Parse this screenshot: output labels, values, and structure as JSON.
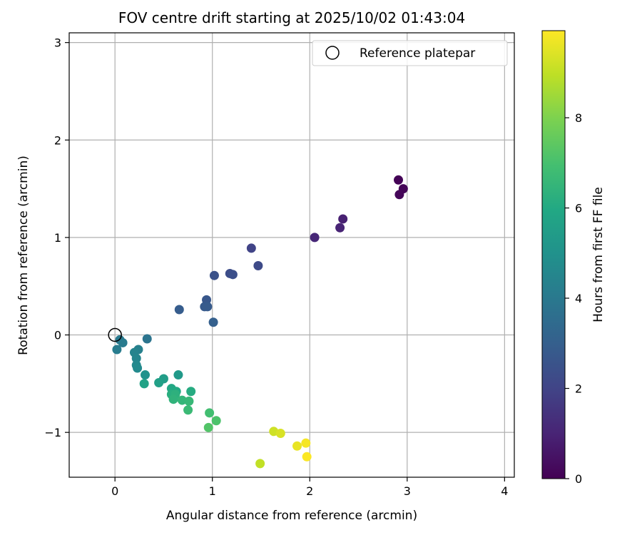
{
  "chart_data": {
    "type": "scatter",
    "title": "FOV centre drift starting at 2025/10/02 01:43:04",
    "xlabel": "Angular distance from reference (arcmin)",
    "ylabel": "Rotation from reference (arcmin)",
    "xlim": [
      -0.47,
      4.1
    ],
    "ylim": [
      -1.46,
      3.1
    ],
    "xticks": [
      0,
      1,
      2,
      3,
      4
    ],
    "xtick_labels": [
      "0",
      "1",
      "2",
      "3",
      "4"
    ],
    "yticks": [
      -1,
      0,
      1,
      2,
      3
    ],
    "ytick_labels": [
      "−1",
      "0",
      "1",
      "2",
      "3"
    ],
    "grid": true,
    "legend": {
      "position": "top-right",
      "label": "Reference platepar"
    },
    "reference_point": {
      "x": 0,
      "y": 0
    },
    "colorbar": {
      "label": "Hours from first FF file",
      "min": 0,
      "max": 9.93,
      "ticks": [
        0,
        2,
        4,
        6,
        8
      ],
      "tick_labels": [
        "0",
        "2",
        "4",
        "6",
        "8"
      ],
      "colormap": "viridis"
    },
    "points": [
      {
        "x": 2.91,
        "y": 1.59,
        "t": 0.05
      },
      {
        "x": 2.96,
        "y": 1.5,
        "t": 0.1
      },
      {
        "x": 2.92,
        "y": 1.44,
        "t": 0.15
      },
      {
        "x": 2.34,
        "y": 1.19,
        "t": 0.9
      },
      {
        "x": 2.31,
        "y": 1.1,
        "t": 1.0
      },
      {
        "x": 2.05,
        "y": 1.0,
        "t": 1.1
      },
      {
        "x": 1.4,
        "y": 0.89,
        "t": 2.0
      },
      {
        "x": 1.47,
        "y": 0.71,
        "t": 2.2
      },
      {
        "x": 1.18,
        "y": 0.63,
        "t": 2.3
      },
      {
        "x": 1.21,
        "y": 0.62,
        "t": 2.4
      },
      {
        "x": 1.02,
        "y": 0.61,
        "t": 2.5
      },
      {
        "x": 0.94,
        "y": 0.36,
        "t": 2.7
      },
      {
        "x": 0.92,
        "y": 0.29,
        "t": 2.8
      },
      {
        "x": 0.95,
        "y": 0.29,
        "t": 2.85
      },
      {
        "x": 0.66,
        "y": 0.26,
        "t": 2.9
      },
      {
        "x": 1.01,
        "y": 0.13,
        "t": 3.0
      },
      {
        "x": 0.33,
        "y": -0.04,
        "t": 3.8
      },
      {
        "x": 0.05,
        "y": -0.05,
        "t": 4.0
      },
      {
        "x": 0.08,
        "y": -0.08,
        "t": 4.1
      },
      {
        "x": 0.02,
        "y": -0.15,
        "t": 4.15
      },
      {
        "x": 0.24,
        "y": -0.15,
        "t": 4.3
      },
      {
        "x": 0.2,
        "y": -0.18,
        "t": 4.4
      },
      {
        "x": 0.22,
        "y": -0.24,
        "t": 4.5
      },
      {
        "x": 0.22,
        "y": -0.31,
        "t": 4.6
      },
      {
        "x": 0.23,
        "y": -0.34,
        "t": 4.7
      },
      {
        "x": 0.31,
        "y": -0.41,
        "t": 5.0
      },
      {
        "x": 0.65,
        "y": -0.41,
        "t": 5.3
      },
      {
        "x": 0.5,
        "y": -0.45,
        "t": 5.5
      },
      {
        "x": 0.45,
        "y": -0.49,
        "t": 5.6
      },
      {
        "x": 0.3,
        "y": -0.5,
        "t": 5.7
      },
      {
        "x": 0.58,
        "y": -0.55,
        "t": 5.9
      },
      {
        "x": 0.63,
        "y": -0.58,
        "t": 6.0
      },
      {
        "x": 0.78,
        "y": -0.58,
        "t": 6.1
      },
      {
        "x": 0.58,
        "y": -0.61,
        "t": 6.2
      },
      {
        "x": 0.62,
        "y": -0.61,
        "t": 6.3
      },
      {
        "x": 0.6,
        "y": -0.66,
        "t": 6.4
      },
      {
        "x": 0.69,
        "y": -0.67,
        "t": 6.5
      },
      {
        "x": 0.76,
        "y": -0.68,
        "t": 6.6
      },
      {
        "x": 0.75,
        "y": -0.77,
        "t": 6.7
      },
      {
        "x": 0.97,
        "y": -0.8,
        "t": 6.9
      },
      {
        "x": 1.04,
        "y": -0.88,
        "t": 7.1
      },
      {
        "x": 0.96,
        "y": -0.95,
        "t": 7.2
      },
      {
        "x": 1.63,
        "y": -0.99,
        "t": 9.2
      },
      {
        "x": 1.7,
        "y": -1.01,
        "t": 9.35
      },
      {
        "x": 1.96,
        "y": -1.11,
        "t": 9.8
      },
      {
        "x": 1.87,
        "y": -1.14,
        "t": 9.6
      },
      {
        "x": 1.97,
        "y": -1.25,
        "t": 9.9
      },
      {
        "x": 1.49,
        "y": -1.32,
        "t": 9.0
      }
    ]
  }
}
